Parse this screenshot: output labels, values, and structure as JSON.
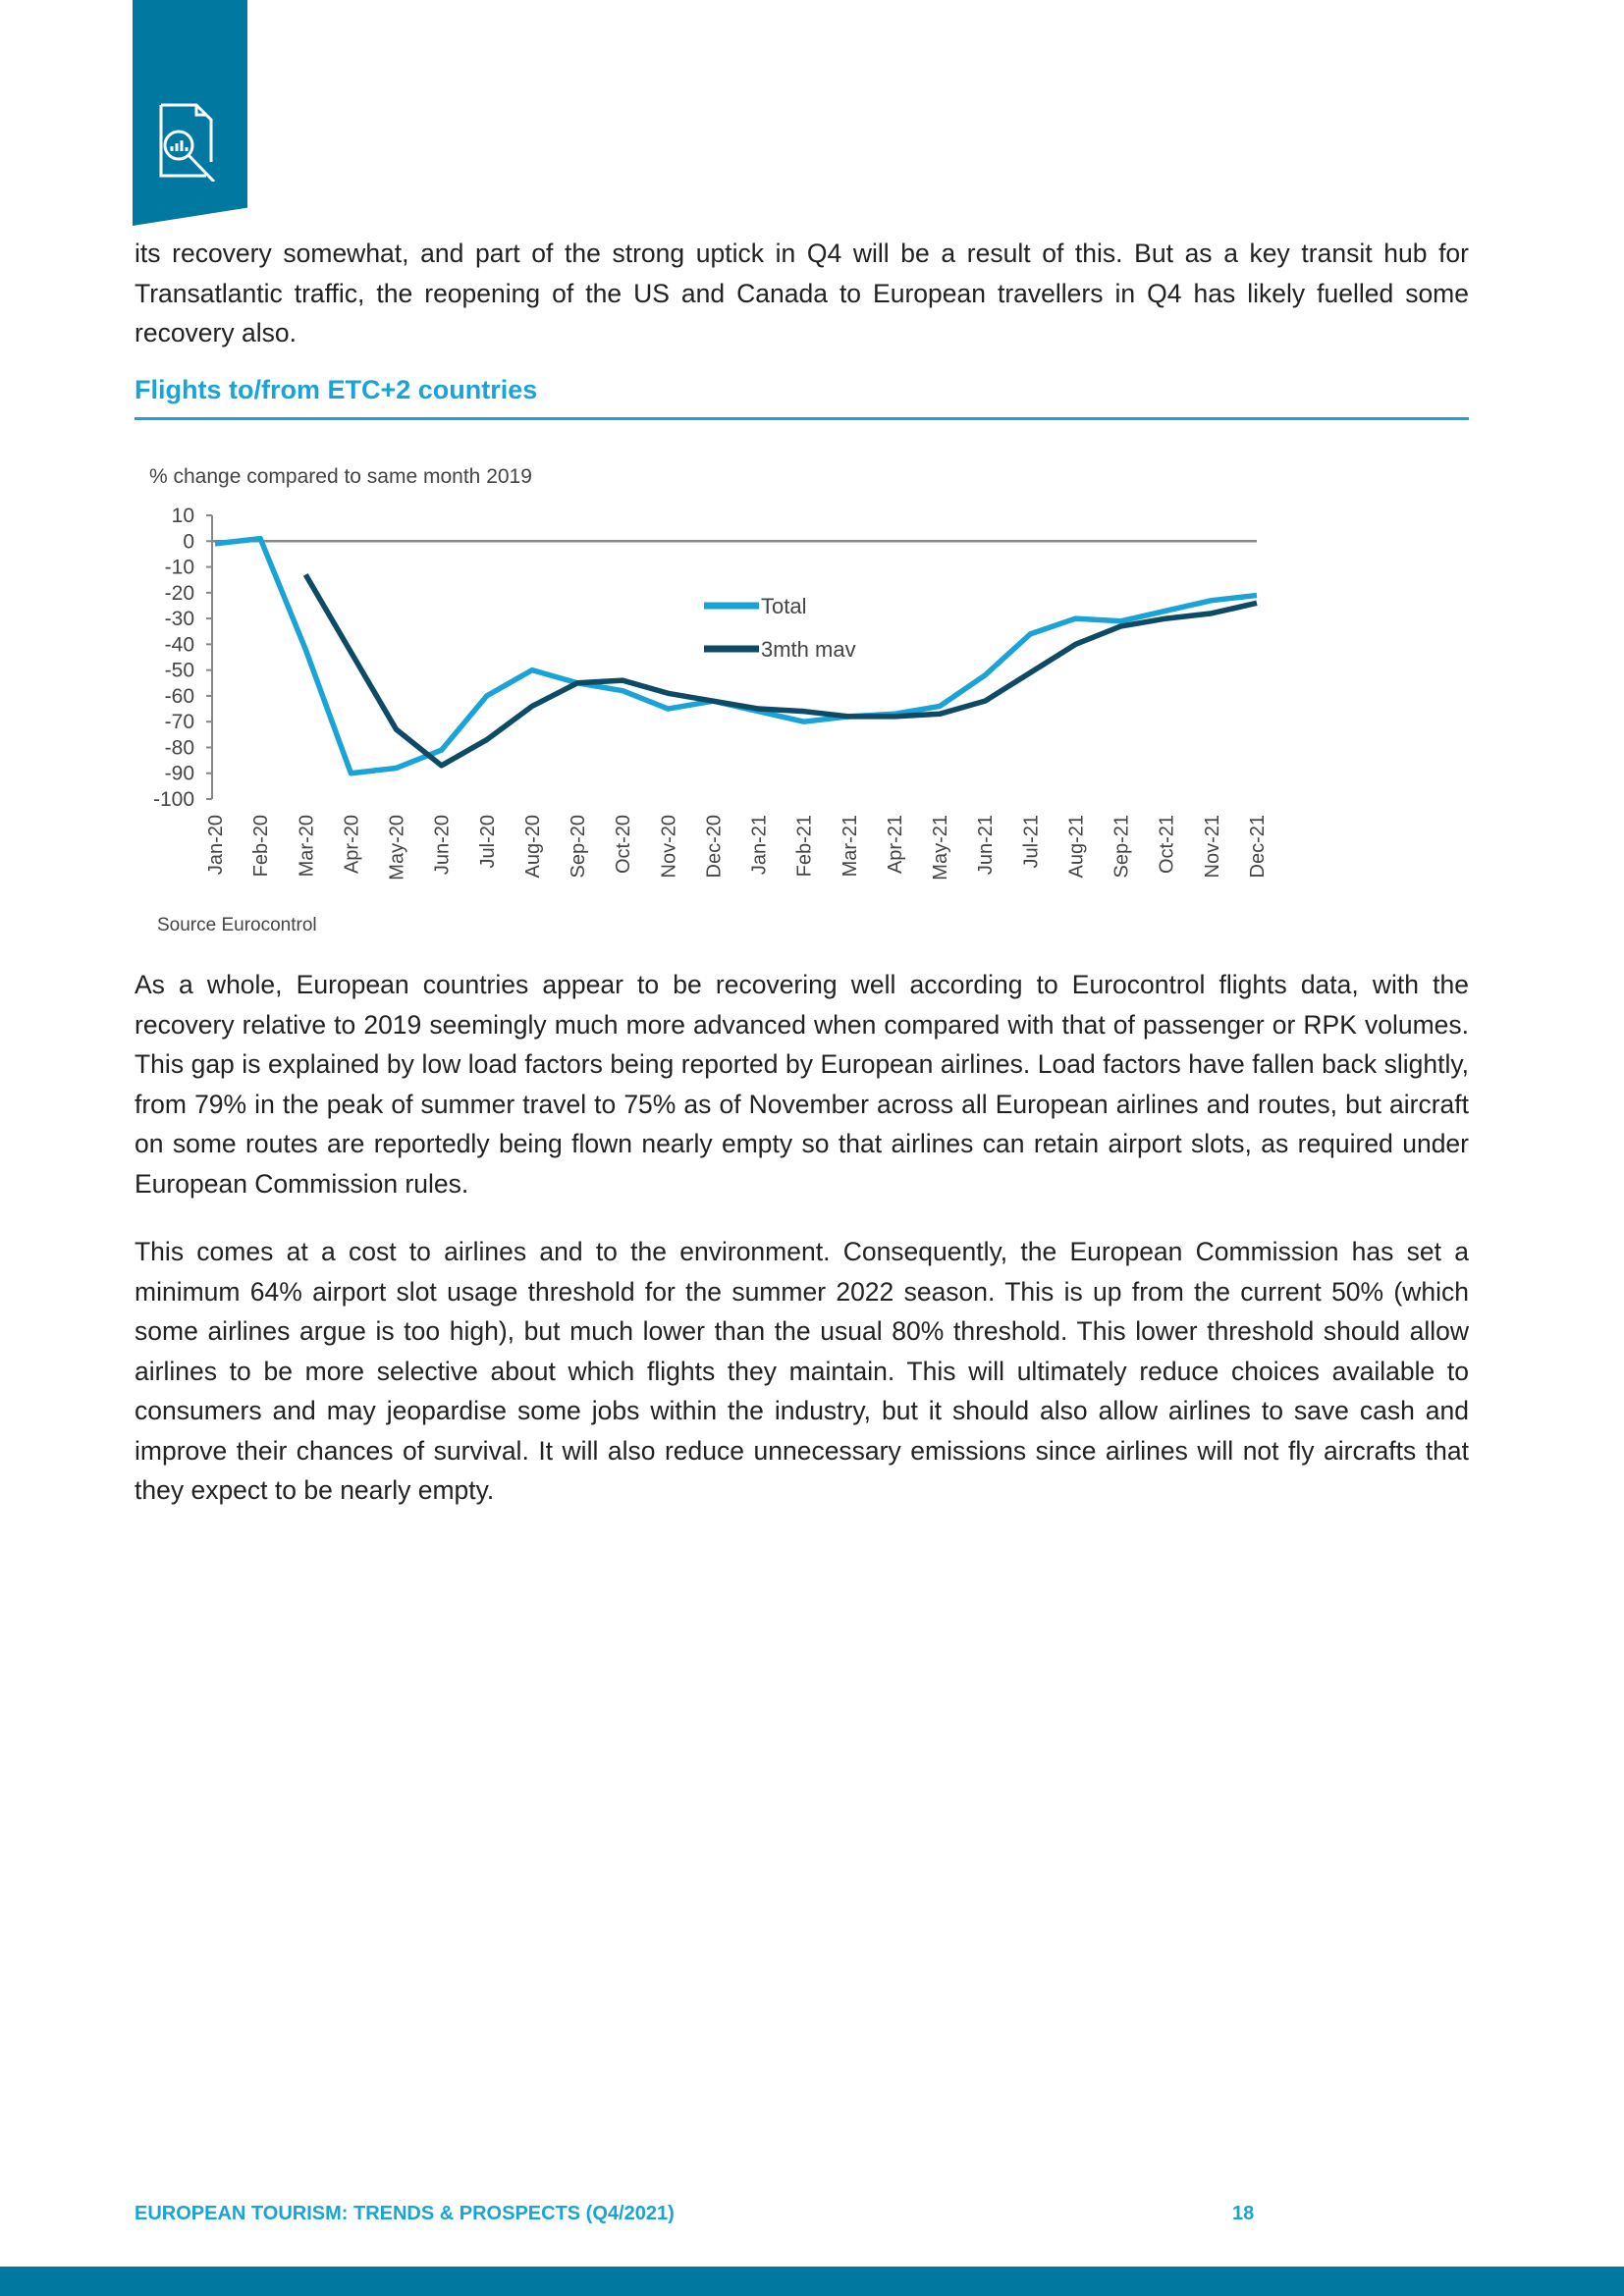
{
  "paragraphs": [
    "its recovery somewhat, and part of the strong uptick in Q4 will be a result of this. But as a key transit hub for Transatlantic traffic, the reopening of the US and Canada to European travellers in Q4 has likely fuelled some recovery also.",
    "As a whole, European countries appear to be recovering well according to Eurocontrol flights data, with the recovery relative to 2019 seemingly much more advanced when compared with that of passenger or RPK volumes. This gap is explained by low load factors being reported by European airlines. Load factors have fallen back slightly, from 79% in the peak of summer travel to 75% as of November across all European airlines and routes, but aircraft on some routes are reportedly being flown nearly empty so that airlines can retain airport slots, as required under European Commission rules.",
    "This comes at a cost to airlines and to the environment. Consequently, the European Commission has set a minimum 64% airport slot usage threshold for the summer 2022 season. This is up from the current 50% (which some airlines argue is too high), but much lower than the usual 80% threshold. This lower threshold should allow airlines to be more selective about which flights they maintain. This will ultimately reduce choices available to consumers and may jeopardise some jobs within the industry, but it should also allow airlines to save cash and improve their chances of survival. It will also reduce unnecessary emissions since airlines will not fly aircrafts that they expect to be nearly empty."
  ],
  "section_heading": "Flights to/from ETC+2 countries",
  "footer": {
    "title": "EUROPEAN TOURISM: TRENDS & PROSPECTS (Q4/2021)",
    "page": "18"
  },
  "colors": {
    "brand": "#0078a0",
    "accent": "#1aa3d6",
    "total": "#1aa3d6",
    "mav": "#0d4a66"
  },
  "chart_data": {
    "type": "line",
    "title": "% change compared to same month 2019",
    "source": "Source Eurocontrol",
    "ylim": [
      -100,
      10
    ],
    "yticks": [
      "10",
      "0",
      "-10",
      "-20",
      "-30",
      "-40",
      "-50",
      "-60",
      "-70",
      "-80",
      "-90",
      "-100"
    ],
    "categories": [
      "Jan-20",
      "Feb-20",
      "Mar-20",
      "Apr-20",
      "May-20",
      "Jun-20",
      "Jul-20",
      "Aug-20",
      "Sep-20",
      "Oct-20",
      "Nov-20",
      "Dec-20",
      "Jan-21",
      "Feb-21",
      "Mar-21",
      "Apr-21",
      "May-21",
      "Jun-21",
      "Jul-21",
      "Aug-21",
      "Sep-21",
      "Oct-21",
      "Nov-21",
      "Dec-21"
    ],
    "legend_position": "center",
    "series": [
      {
        "name": "Total",
        "values": [
          -1,
          1,
          -42,
          -90,
          -88,
          -81,
          -60,
          -50,
          -55,
          -58,
          -65,
          -62,
          -66,
          -70,
          -68,
          -67,
          -64,
          -52,
          -36,
          -30,
          -31,
          -27,
          -23,
          -21
        ]
      },
      {
        "name": "3mth mav",
        "values": [
          null,
          null,
          -13,
          -43,
          -73,
          -87,
          -77,
          -64,
          -55,
          -54,
          -59,
          -62,
          -65,
          -66,
          -68,
          -68,
          -67,
          -62,
          -51,
          -40,
          -33,
          -30,
          -28,
          -24
        ]
      }
    ]
  }
}
